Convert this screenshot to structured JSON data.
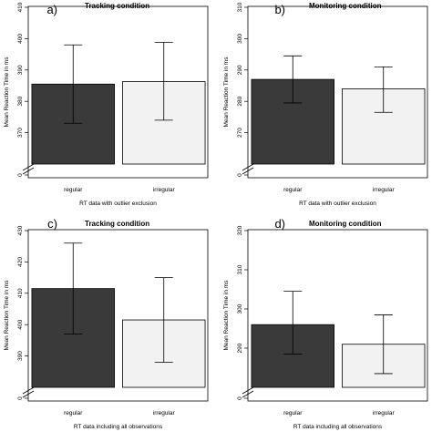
{
  "chart_data": [
    {
      "type": "bar",
      "panel": "a)",
      "title": "Tracking condition",
      "ylabel": "Mean Reaction Time in ms",
      "xlabel": "RT data with outlier exclusion",
      "categories": [
        "regular",
        "irregular"
      ],
      "values": [
        385.5,
        386.3
      ],
      "error_low": [
        373,
        374
      ],
      "error_high": [
        398,
        398.8
      ],
      "bar_colors": [
        "#3a3a3a",
        "#f2f2f2"
      ],
      "ylim": [
        360,
        410
      ],
      "yticks": [
        0,
        370,
        380,
        390,
        400,
        410
      ],
      "axis_break": true
    },
    {
      "type": "bar",
      "panel": "b)",
      "title": "Monitoring condition",
      "ylabel": "Mean Reaction Time in ms",
      "xlabel": "RT data with outlier exclusion",
      "categories": [
        "regular",
        "irregular"
      ],
      "values": [
        287,
        284
      ],
      "error_low": [
        279.5,
        276.5
      ],
      "error_high": [
        294.5,
        291
      ],
      "bar_colors": [
        "#3a3a3a",
        "#f2f2f2"
      ],
      "ylim": [
        260,
        310
      ],
      "yticks": [
        0,
        270,
        280,
        290,
        300,
        310
      ],
      "axis_break": true
    },
    {
      "type": "bar",
      "panel": "c)",
      "title": "Tracking condition",
      "ylabel": "Mean Reaction Time in ms",
      "xlabel": "RT data including all observations",
      "categories": [
        "regular",
        "irregular"
      ],
      "values": [
        411.5,
        401.5
      ],
      "error_low": [
        397,
        388
      ],
      "error_high": [
        426,
        415
      ],
      "bar_colors": [
        "#3a3a3a",
        "#f2f2f2"
      ],
      "ylim": [
        380,
        430
      ],
      "yticks": [
        0,
        390,
        400,
        410,
        420,
        430
      ],
      "axis_break": true
    },
    {
      "type": "bar",
      "panel": "d)",
      "title": "Monitoring condition",
      "ylabel": "Mean Reaction Time in ms",
      "xlabel": "RT data including all observations",
      "categories": [
        "regular",
        "irregular"
      ],
      "values": [
        296,
        291
      ],
      "error_low": [
        288.5,
        283.5
      ],
      "error_high": [
        304.5,
        298.5
      ],
      "bar_colors": [
        "#3a3a3a",
        "#f2f2f2"
      ],
      "ylim": [
        280,
        320
      ],
      "yticks": [
        0,
        290,
        300,
        310,
        320
      ],
      "axis_break": true
    }
  ]
}
